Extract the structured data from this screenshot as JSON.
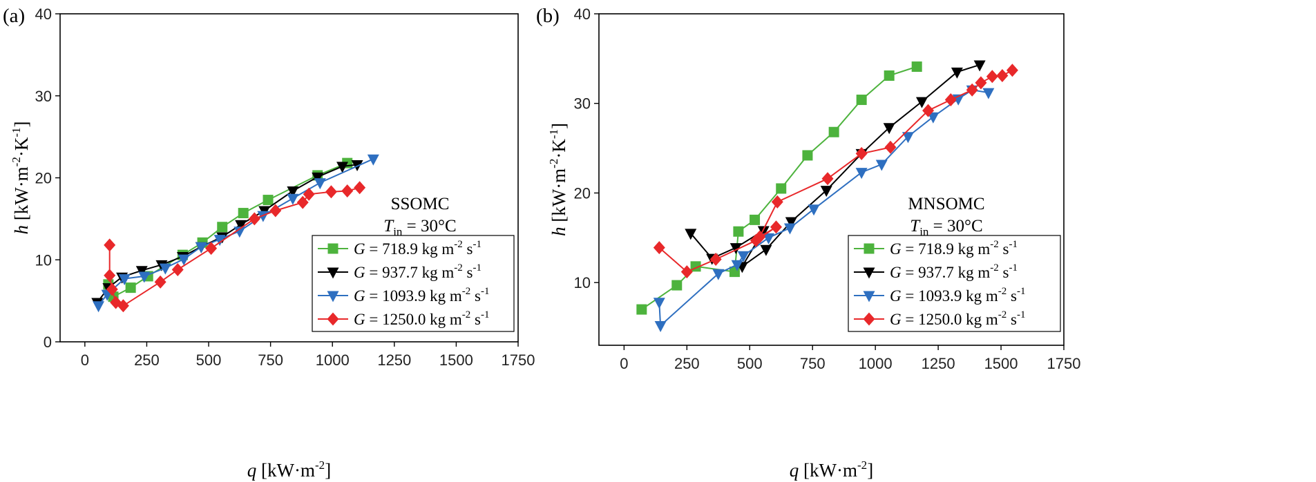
{
  "chart_data": [
    {
      "type": "line",
      "panel": "(a)",
      "annotation": "SSOMC",
      "condition": {
        "symbol": "T",
        "subscript": "in",
        "text": " = 30°C"
      },
      "xlabel": {
        "symbol": "q",
        "units": " [kW·m",
        "exp": "-2",
        "close": "]"
      },
      "ylabel": {
        "symbol": "h",
        "units": " [kW·m",
        "exp1": "-2",
        "mid": "·K",
        "exp2": "-1",
        "close": "]"
      },
      "xlim": [
        -100,
        1750
      ],
      "ylim": [
        0,
        40
      ],
      "xticks": [
        0,
        250,
        500,
        750,
        1000,
        1250,
        1500,
        1750
      ],
      "yticks": [
        0,
        10,
        20,
        30,
        40
      ],
      "legend_position": "bottom-right",
      "series": [
        {
          "name": "718.9",
          "color": "#4db33d",
          "marker": "square",
          "x": [
            95,
            115,
            185,
            255,
            395,
            475,
            555,
            640,
            740,
            940,
            1060
          ],
          "y": [
            7.0,
            5.5,
            6.6,
            8.0,
            10.6,
            12.1,
            14.0,
            15.7,
            17.3,
            20.3,
            21.8
          ]
        },
        {
          "name": "937.7",
          "color": "#000000",
          "marker": "triangle-down",
          "x": [
            50,
            95,
            150,
            230,
            310,
            395,
            470,
            555,
            630,
            725,
            840,
            940,
            1040,
            1100
          ],
          "y": [
            4.8,
            6.6,
            7.9,
            8.7,
            9.4,
            10.4,
            11.6,
            12.8,
            14.3,
            16.0,
            18.4,
            20.1,
            21.4,
            21.6
          ]
        },
        {
          "name": "1093.9",
          "color": "#2e6fc0",
          "marker": "triangle-up",
          "x": [
            55,
            90,
            160,
            240,
            325,
            400,
            470,
            545,
            625,
            720,
            840,
            950,
            1165
          ],
          "y": [
            4.4,
            5.8,
            7.7,
            8.0,
            9.0,
            10.1,
            11.6,
            12.5,
            13.5,
            15.4,
            17.5,
            19.4,
            22.3
          ]
        },
        {
          "name": "1250.0",
          "color": "#e8282a",
          "marker": "diamond",
          "x": [
            100,
            100,
            110,
            125,
            155,
            305,
            375,
            510,
            685,
            770,
            880,
            905,
            995,
            1060,
            1110
          ],
          "y": [
            11.8,
            8.1,
            6.4,
            4.8,
            4.4,
            7.3,
            8.8,
            11.4,
            15.0,
            16.0,
            17.0,
            18.0,
            18.3,
            18.4,
            18.8
          ]
        }
      ]
    },
    {
      "type": "line",
      "panel": "(b)",
      "annotation": "MNSOMC",
      "condition": {
        "symbol": "T",
        "subscript": "in",
        "text": " = 30°C"
      },
      "xlabel": {
        "symbol": "q",
        "units": " [kW·m",
        "exp": "-2",
        "close": "]"
      },
      "ylabel": {
        "symbol": "h",
        "units": " [kW·m",
        "exp1": "-2",
        "mid": "·K",
        "exp2": "-1",
        "close": "]"
      },
      "xlim": [
        -100,
        1750
      ],
      "ylim": [
        3,
        40
      ],
      "xticks": [
        0,
        250,
        500,
        750,
        1000,
        1250,
        1500,
        1750
      ],
      "yticks": [
        10,
        20,
        30,
        40
      ],
      "legend_position": "bottom-right",
      "series": [
        {
          "name": "718.9",
          "color": "#4db33d",
          "marker": "square",
          "x": [
            70,
            210,
            285,
            440,
            455,
            520,
            625,
            730,
            835,
            945,
            1055,
            1165
          ],
          "y": [
            7.0,
            9.7,
            11.8,
            11.2,
            15.7,
            17.0,
            20.5,
            24.2,
            26.8,
            30.4,
            33.1,
            34.1
          ]
        },
        {
          "name": "937.7",
          "color": "#000000",
          "marker": "triangle-down",
          "x": [
            265,
            350,
            445,
            555,
            470,
            565,
            665,
            805,
            945,
            1055,
            1185,
            1325,
            1415
          ],
          "y": [
            15.5,
            12.7,
            13.9,
            15.8,
            11.8,
            13.7,
            16.8,
            20.3,
            24.4,
            27.3,
            30.2,
            33.5,
            34.3
          ]
        },
        {
          "name": "1093.9",
          "color": "#2e6fc0",
          "marker": "triangle-up",
          "x": [
            140,
            145,
            375,
            450,
            475,
            575,
            660,
            755,
            945,
            1025,
            1130,
            1230,
            1330,
            1385,
            1450
          ],
          "y": [
            7.8,
            5.2,
            11.0,
            12.0,
            13.0,
            15.0,
            16.1,
            18.2,
            22.3,
            23.2,
            26.3,
            28.5,
            30.5,
            31.5,
            31.2
          ]
        },
        {
          "name": "1250.0",
          "color": "#e8282a",
          "marker": "diamond",
          "x": [
            140,
            250,
            365,
            525,
            605,
            540,
            610,
            810,
            945,
            1060,
            1210,
            1300,
            1385,
            1420,
            1465,
            1505,
            1545
          ],
          "y": [
            13.9,
            11.2,
            12.6,
            14.7,
            16.2,
            15.1,
            19.0,
            21.6,
            24.4,
            25.1,
            29.2,
            30.4,
            31.5,
            32.3,
            33.0,
            33.1,
            33.7
          ]
        }
      ]
    }
  ],
  "legend": {
    "prefix": "G",
    "equals": " = ",
    "units_text": " kg m",
    "units_exp1": "-2",
    "units_mid": " s",
    "units_exp2": "-1"
  }
}
